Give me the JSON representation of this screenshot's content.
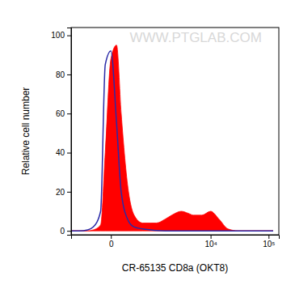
{
  "chart_data": {
    "type": "area",
    "x_label": "CR-65135 CD8a (OKT8)",
    "y_label": "Relative cell number",
    "annotations": [
      "WWW.PTGLAB.COM"
    ],
    "log": "x",
    "x": [
      -760,
      -500,
      -300,
      -200,
      -100,
      -50,
      0,
      50,
      100,
      200,
      300,
      500,
      750,
      1000,
      1500,
      2000,
      3000,
      4000,
      5000,
      7000,
      10000,
      14000,
      20000,
      30000,
      50000,
      80000,
      120000
    ],
    "series": [
      {
        "type": "area",
        "color": "#ff0000",
        "values": [
          0,
          0,
          0,
          0.5,
          3,
          40,
          88,
          95,
          60,
          20,
          8,
          4,
          4,
          4,
          6,
          8,
          10,
          9,
          8,
          8,
          10,
          6,
          1,
          0,
          0,
          0,
          0
        ]
      },
      {
        "type": "line",
        "color": "#2a2aa8",
        "values": [
          0,
          0,
          0.5,
          2,
          10,
          85,
          92,
          55,
          20,
          5,
          2,
          1,
          0.5,
          0.2,
          0,
          0,
          0,
          0,
          0,
          0,
          0,
          0,
          0,
          0,
          0,
          0,
          0
        ]
      }
    ],
    "xlim": [
      -760,
      150000
    ],
    "xticks": [
      0,
      {
        "value": 10000,
        "label": "10⁴"
      },
      {
        "value": 100000,
        "label": "10⁵"
      }
    ],
    "ylim": [
      -2,
      104
    ],
    "yticks": [
      0,
      20,
      40,
      60,
      80,
      100
    ]
  }
}
